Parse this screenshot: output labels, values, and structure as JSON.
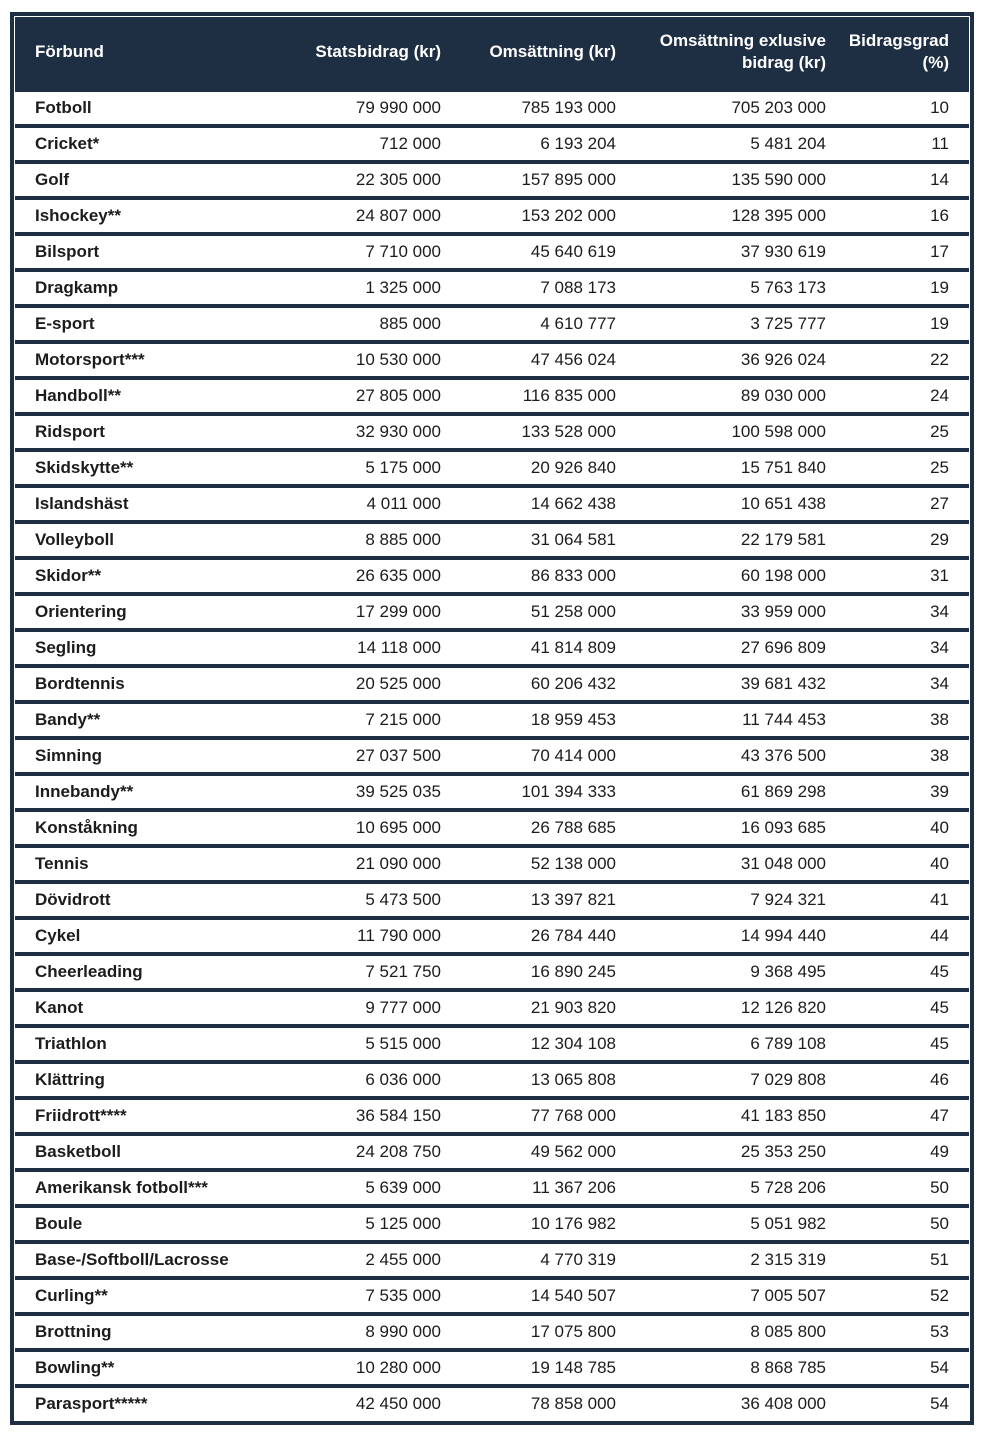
{
  "colors": {
    "header_bg": "#1e2e43",
    "border": "#1e2e43",
    "row_bg": "#ffffff",
    "header_text": "#ffffff",
    "body_text": "#1c1c1c"
  },
  "table": {
    "headers": [
      "Förbund",
      "Statsbidrag (kr)",
      "Omsättning (kr)",
      "Omsättning exlusive bidrag (kr)",
      "Bidragsgrad (%)"
    ],
    "rows": [
      [
        "Fotboll",
        "79 990 000",
        "785 193 000",
        "705 203 000",
        "10"
      ],
      [
        "Cricket*",
        "712 000",
        "6 193 204",
        "5 481 204",
        "11"
      ],
      [
        "Golf",
        "22 305 000",
        "157 895 000",
        "135 590 000",
        "14"
      ],
      [
        "Ishockey**",
        "24 807 000",
        "153 202 000",
        "128 395 000",
        "16"
      ],
      [
        "Bilsport",
        "7 710 000",
        "45 640 619",
        "37 930 619",
        "17"
      ],
      [
        "Dragkamp",
        "1 325 000",
        "7 088 173",
        "5 763 173",
        "19"
      ],
      [
        "E-sport",
        "885 000",
        "4 610 777",
        "3 725 777",
        "19"
      ],
      [
        "Motorsport***",
        "10 530 000",
        "47 456 024",
        "36 926 024",
        "22"
      ],
      [
        "Handboll**",
        "27 805 000",
        "116 835 000",
        "89 030 000",
        "24"
      ],
      [
        "Ridsport",
        "32 930 000",
        "133 528 000",
        "100 598 000",
        "25"
      ],
      [
        "Skidskytte**",
        "5 175 000",
        "20 926 840",
        "15 751 840",
        "25"
      ],
      [
        "Islandshäst",
        "4 011 000",
        "14 662 438",
        "10 651 438",
        "27"
      ],
      [
        "Volleyboll",
        "8 885 000",
        "31 064 581",
        "22 179 581",
        "29"
      ],
      [
        "Skidor**",
        "26 635 000",
        "86 833 000",
        "60 198 000",
        "31"
      ],
      [
        "Orientering",
        "17 299 000",
        "51 258 000",
        "33 959 000",
        "34"
      ],
      [
        "Segling",
        "14 118 000",
        "41 814 809",
        "27 696 809",
        "34"
      ],
      [
        "Bordtennis",
        "20 525 000",
        "60 206 432",
        "39 681 432",
        "34"
      ],
      [
        "Bandy**",
        "7 215 000",
        "18 959 453",
        "11 744 453",
        "38"
      ],
      [
        "Simning",
        "27 037 500",
        "70 414 000",
        "43 376 500",
        "38"
      ],
      [
        "Innebandy**",
        "39 525 035",
        "101 394 333",
        "61 869 298",
        "39"
      ],
      [
        "Konståkning",
        "10 695 000",
        "26 788 685",
        "16 093 685",
        "40"
      ],
      [
        "Tennis",
        "21 090 000",
        "52 138 000",
        "31 048 000",
        "40"
      ],
      [
        "Dövidrott",
        "5 473 500",
        "13 397 821",
        "7 924 321",
        "41"
      ],
      [
        "Cykel",
        "11 790 000",
        "26 784 440",
        "14 994 440",
        "44"
      ],
      [
        "Cheerleading",
        "7 521 750",
        "16 890 245",
        "9 368 495",
        "45"
      ],
      [
        "Kanot",
        "9 777 000",
        "21 903 820",
        "12 126 820",
        "45"
      ],
      [
        "Triathlon",
        "5 515 000",
        "12 304 108",
        "6 789 108",
        "45"
      ],
      [
        "Klättring",
        "6 036 000",
        "13 065 808",
        "7 029 808",
        "46"
      ],
      [
        "Friidrott****",
        "36 584 150",
        "77 768 000",
        "41 183 850",
        "47"
      ],
      [
        "Basketboll",
        "24 208 750",
        "49 562 000",
        "25 353 250",
        "49"
      ],
      [
        "Amerikansk fotboll***",
        "5 639 000",
        "11 367 206",
        "5 728 206",
        "50"
      ],
      [
        "Boule",
        "5 125 000",
        "10 176 982",
        "5 051 982",
        "50"
      ],
      [
        "Base-/Softboll/Lacrosse",
        "2 455 000",
        "4 770 319",
        "2 315 319",
        "51"
      ],
      [
        "Curling**",
        "7 535 000",
        "14 540 507",
        "7 005 507",
        "52"
      ],
      [
        "Brottning",
        "8 990 000",
        "17 075 800",
        "8 085 800",
        "53"
      ],
      [
        "Bowling**",
        "10 280 000",
        "19 148 785",
        "8 868 785",
        "54"
      ],
      [
        "Parasport*****",
        "42 450 000",
        "78 858 000",
        "36 408 000",
        "54"
      ]
    ]
  }
}
